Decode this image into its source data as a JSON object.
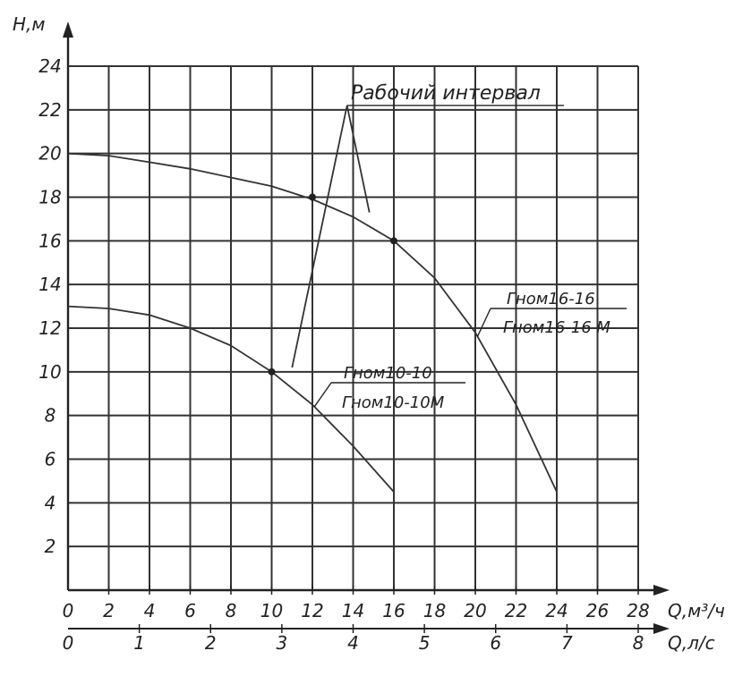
{
  "chart_data": {
    "type": "line",
    "y_axis": {
      "label": "H,м",
      "min": 0,
      "max": 24,
      "ticks": [
        2,
        4,
        6,
        8,
        10,
        12,
        14,
        16,
        18,
        20,
        22,
        24
      ]
    },
    "x_axis": {
      "label": "Q,м³/ч",
      "min": 0,
      "max": 28,
      "ticks": [
        0,
        2,
        4,
        6,
        8,
        10,
        12,
        14,
        16,
        18,
        20,
        22,
        24,
        26,
        28
      ]
    },
    "x_axis_secondary": {
      "label": "Q,л/с",
      "min": 0,
      "max": 8,
      "ticks": [
        0,
        1,
        2,
        3,
        4,
        5,
        6,
        7,
        8
      ]
    },
    "grid": true,
    "series": [
      {
        "name": "Гном16-16",
        "x": [
          0,
          2,
          4,
          6,
          8,
          10,
          12,
          14,
          16,
          18,
          20,
          22,
          24
        ],
        "y": [
          20,
          19.9,
          19.6,
          19.3,
          18.9,
          18.5,
          17.9,
          17.1,
          16,
          14.3,
          11.8,
          8.5,
          4.5
        ]
      },
      {
        "name": "Гном10-10",
        "x": [
          0,
          2,
          4,
          6,
          8,
          10,
          12,
          14,
          16
        ],
        "y": [
          13,
          12.9,
          12.6,
          12,
          11.2,
          10,
          8.5,
          6.6,
          4.5
        ]
      },
      {
        "name": "Рабочий интервал",
        "x": [
          11,
          13.7,
          14.8
        ],
        "y": [
          10.2,
          22.2,
          17.3
        ]
      }
    ],
    "annotations": [
      {
        "text": "Рабочий интервал",
        "x": 16,
        "y": 22.2
      },
      {
        "text": "Гном16-16",
        "x": 23,
        "y": 13.2
      },
      {
        "text": "Гном16-16 М",
        "x": 23,
        "y": 12.1
      },
      {
        "text": "Гном10-10",
        "x": 14,
        "y": 10.2
      },
      {
        "text": "Гном10-10М",
        "x": 14,
        "y": 9.1
      }
    ],
    "marked_points": [
      {
        "x": 10,
        "y": 10
      },
      {
        "x": 16,
        "y": 16
      },
      {
        "x": 12,
        "y": 18
      }
    ]
  }
}
